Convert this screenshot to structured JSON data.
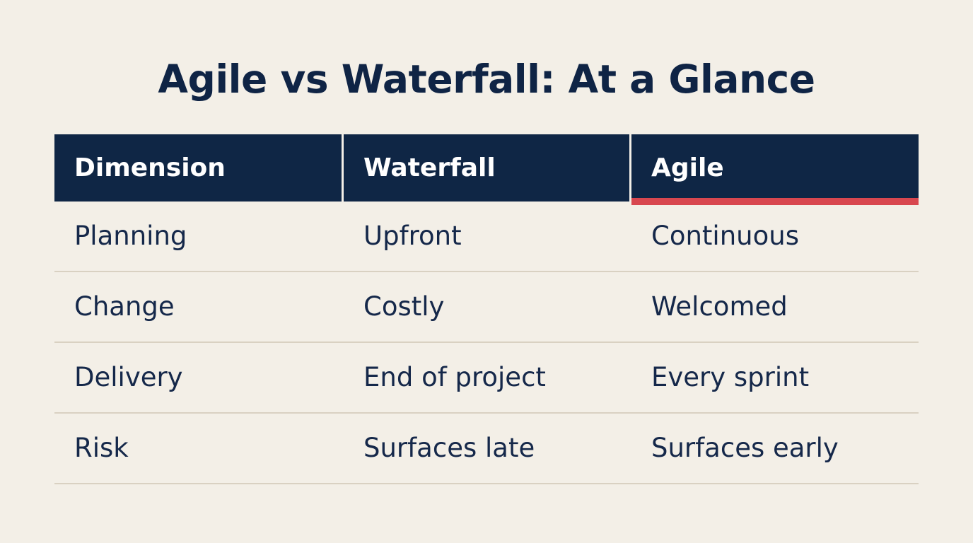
{
  "title": "Agile vs Waterfall: At a Glance",
  "table": {
    "headers": [
      "Dimension",
      "Waterfall",
      "Agile"
    ],
    "rows": [
      [
        "Planning",
        "Upfront",
        "Continuous"
      ],
      [
        "Change",
        "Costly",
        "Welcomed"
      ],
      [
        "Delivery",
        "End of project",
        "Every sprint"
      ],
      [
        "Risk",
        "Surfaces late",
        "Surfaces early"
      ]
    ]
  },
  "colors": {
    "background": "#f3efe7",
    "header": "#0f2645",
    "accent": "#d8474f",
    "text": "#13274a",
    "divider": "#d9d1c2"
  }
}
